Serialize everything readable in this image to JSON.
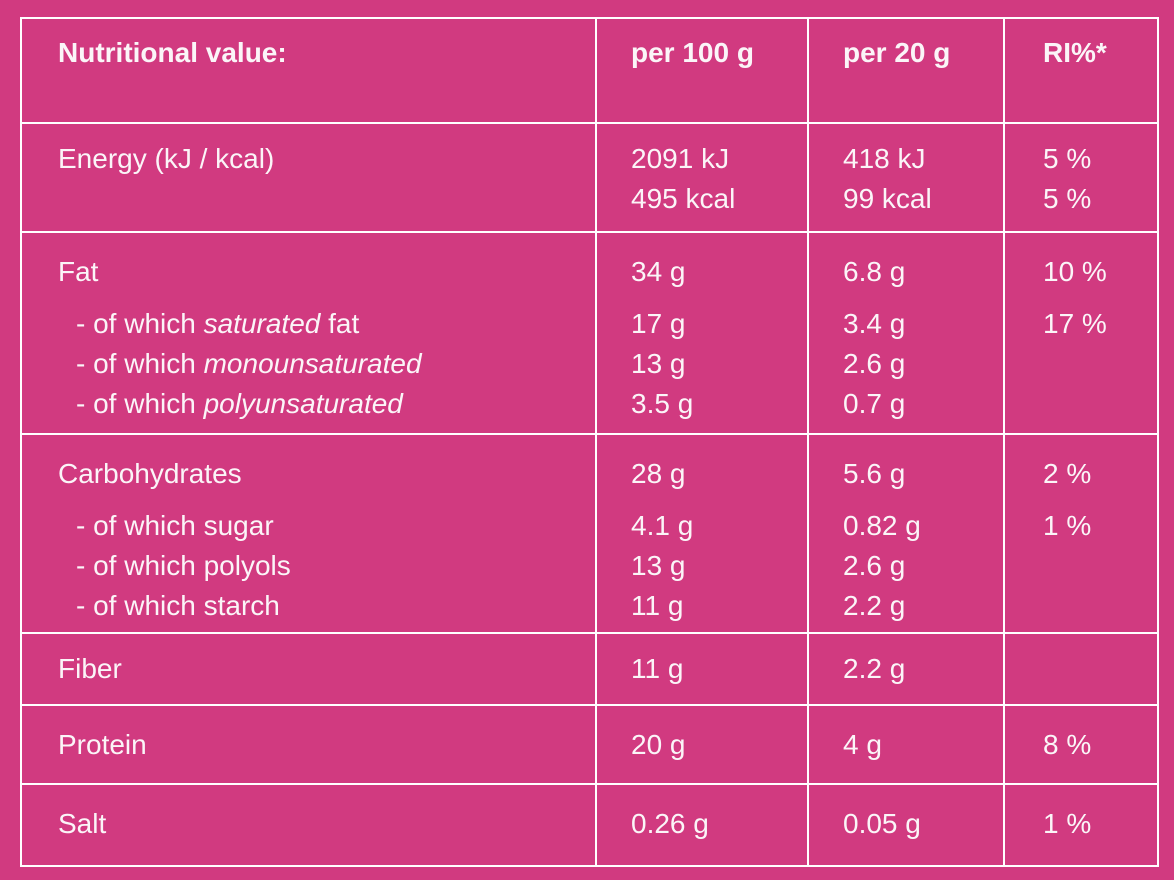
{
  "colors": {
    "background": "#d13a80",
    "border": "#ffffff",
    "text": "#fbf5f8"
  },
  "header": {
    "label": "Nutritional value:",
    "per100": "per 100 g",
    "per20": "per 20 g",
    "ri": "RI%*"
  },
  "energy": {
    "label": "Energy (kJ / kcal)",
    "per100": [
      "2091 kJ",
      "495 kcal"
    ],
    "per20": [
      "418 kJ",
      "99 kcal"
    ],
    "ri": [
      "5 %",
      "5 %"
    ]
  },
  "fat": {
    "label": "Fat",
    "sub": [
      {
        "pre": "- of which ",
        "it": "saturated",
        "post": " fat"
      },
      {
        "pre": "- of which ",
        "it": "monounsaturated",
        "post": ""
      },
      {
        "pre": "- of which ",
        "it": "polyunsaturated",
        "post": ""
      }
    ],
    "per100_main": "34 g",
    "per100_sub": [
      "17 g",
      "13 g",
      "3.5 g"
    ],
    "per20_main": "6.8 g",
    "per20_sub": [
      "3.4 g",
      "2.6 g",
      "0.7 g"
    ],
    "ri_main": "10 %",
    "ri_sub": [
      "17 %"
    ]
  },
  "carbs": {
    "label": "Carbohydrates",
    "sub": [
      "- of which sugar",
      "- of which polyols",
      "- of which starch"
    ],
    "per100_main": "28 g",
    "per100_sub": [
      "4.1 g",
      "13 g",
      "11 g"
    ],
    "per20_main": "5.6 g",
    "per20_sub": [
      "0.82 g",
      "2.6 g",
      "2.2 g"
    ],
    "ri_main": "2 %",
    "ri_sub": [
      "1 %"
    ]
  },
  "fiber": {
    "label": "Fiber",
    "per100": "11 g",
    "per20": "2.2 g",
    "ri": ""
  },
  "protein": {
    "label": "Protein",
    "per100": "20 g",
    "per20": "4 g",
    "ri": "8 %"
  },
  "salt": {
    "label": "Salt",
    "per100": "0.26 g",
    "per20": "0.05 g",
    "ri": "1 %"
  }
}
